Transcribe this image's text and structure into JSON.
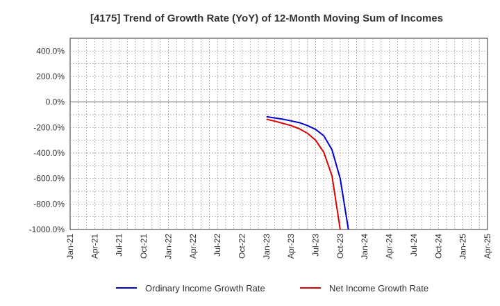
{
  "chart_data": {
    "type": "line",
    "title": "[4175]  Trend of Growth Rate (YoY) of 12-Month Moving Sum of Incomes",
    "xlabel": "",
    "ylabel": "",
    "ylim": [
      -1000,
      500
    ],
    "y_ticks": [
      "400.0%",
      "200.0%",
      "0.0%",
      "-200.0%",
      "-400.0%",
      "-600.0%",
      "-800.0%",
      "-1000.0%"
    ],
    "y_tick_values": [
      400,
      200,
      0,
      -200,
      -400,
      -600,
      -800,
      -1000
    ],
    "x_ticks": [
      "Jan-21",
      "Apr-21",
      "Jul-21",
      "Oct-21",
      "Jan-22",
      "Apr-22",
      "Jul-22",
      "Oct-22",
      "Jan-23",
      "Apr-23",
      "Jul-23",
      "Oct-23",
      "Jan-24",
      "Apr-24",
      "Jul-24",
      "Oct-24",
      "Jan-25",
      "Apr-25"
    ],
    "x_range": [
      "2021-01",
      "2025-04"
    ],
    "grid": true,
    "legend_position": "bottom",
    "series": [
      {
        "name": "Ordinary Income Growth Rate",
        "color": "#0000cc",
        "points": [
          {
            "x": "2023-01",
            "y": -115
          },
          {
            "x": "2023-02",
            "y": -125
          },
          {
            "x": "2023-03",
            "y": -135
          },
          {
            "x": "2023-04",
            "y": -148
          },
          {
            "x": "2023-05",
            "y": -162
          },
          {
            "x": "2023-06",
            "y": -185
          },
          {
            "x": "2023-07",
            "y": -215
          },
          {
            "x": "2023-08",
            "y": -265
          },
          {
            "x": "2023-09",
            "y": -375
          },
          {
            "x": "2023-10",
            "y": -600
          },
          {
            "x": "2023-11",
            "y": -1000
          }
        ]
      },
      {
        "name": "Net Income Growth Rate",
        "color": "#dd0000",
        "points": [
          {
            "x": "2023-01",
            "y": -135
          },
          {
            "x": "2023-02",
            "y": -150
          },
          {
            "x": "2023-03",
            "y": -168
          },
          {
            "x": "2023-04",
            "y": -185
          },
          {
            "x": "2023-05",
            "y": -210
          },
          {
            "x": "2023-06",
            "y": -245
          },
          {
            "x": "2023-07",
            "y": -300
          },
          {
            "x": "2023-08",
            "y": -395
          },
          {
            "x": "2023-09",
            "y": -580
          },
          {
            "x": "2023-10",
            "y": -1000
          }
        ]
      }
    ]
  }
}
